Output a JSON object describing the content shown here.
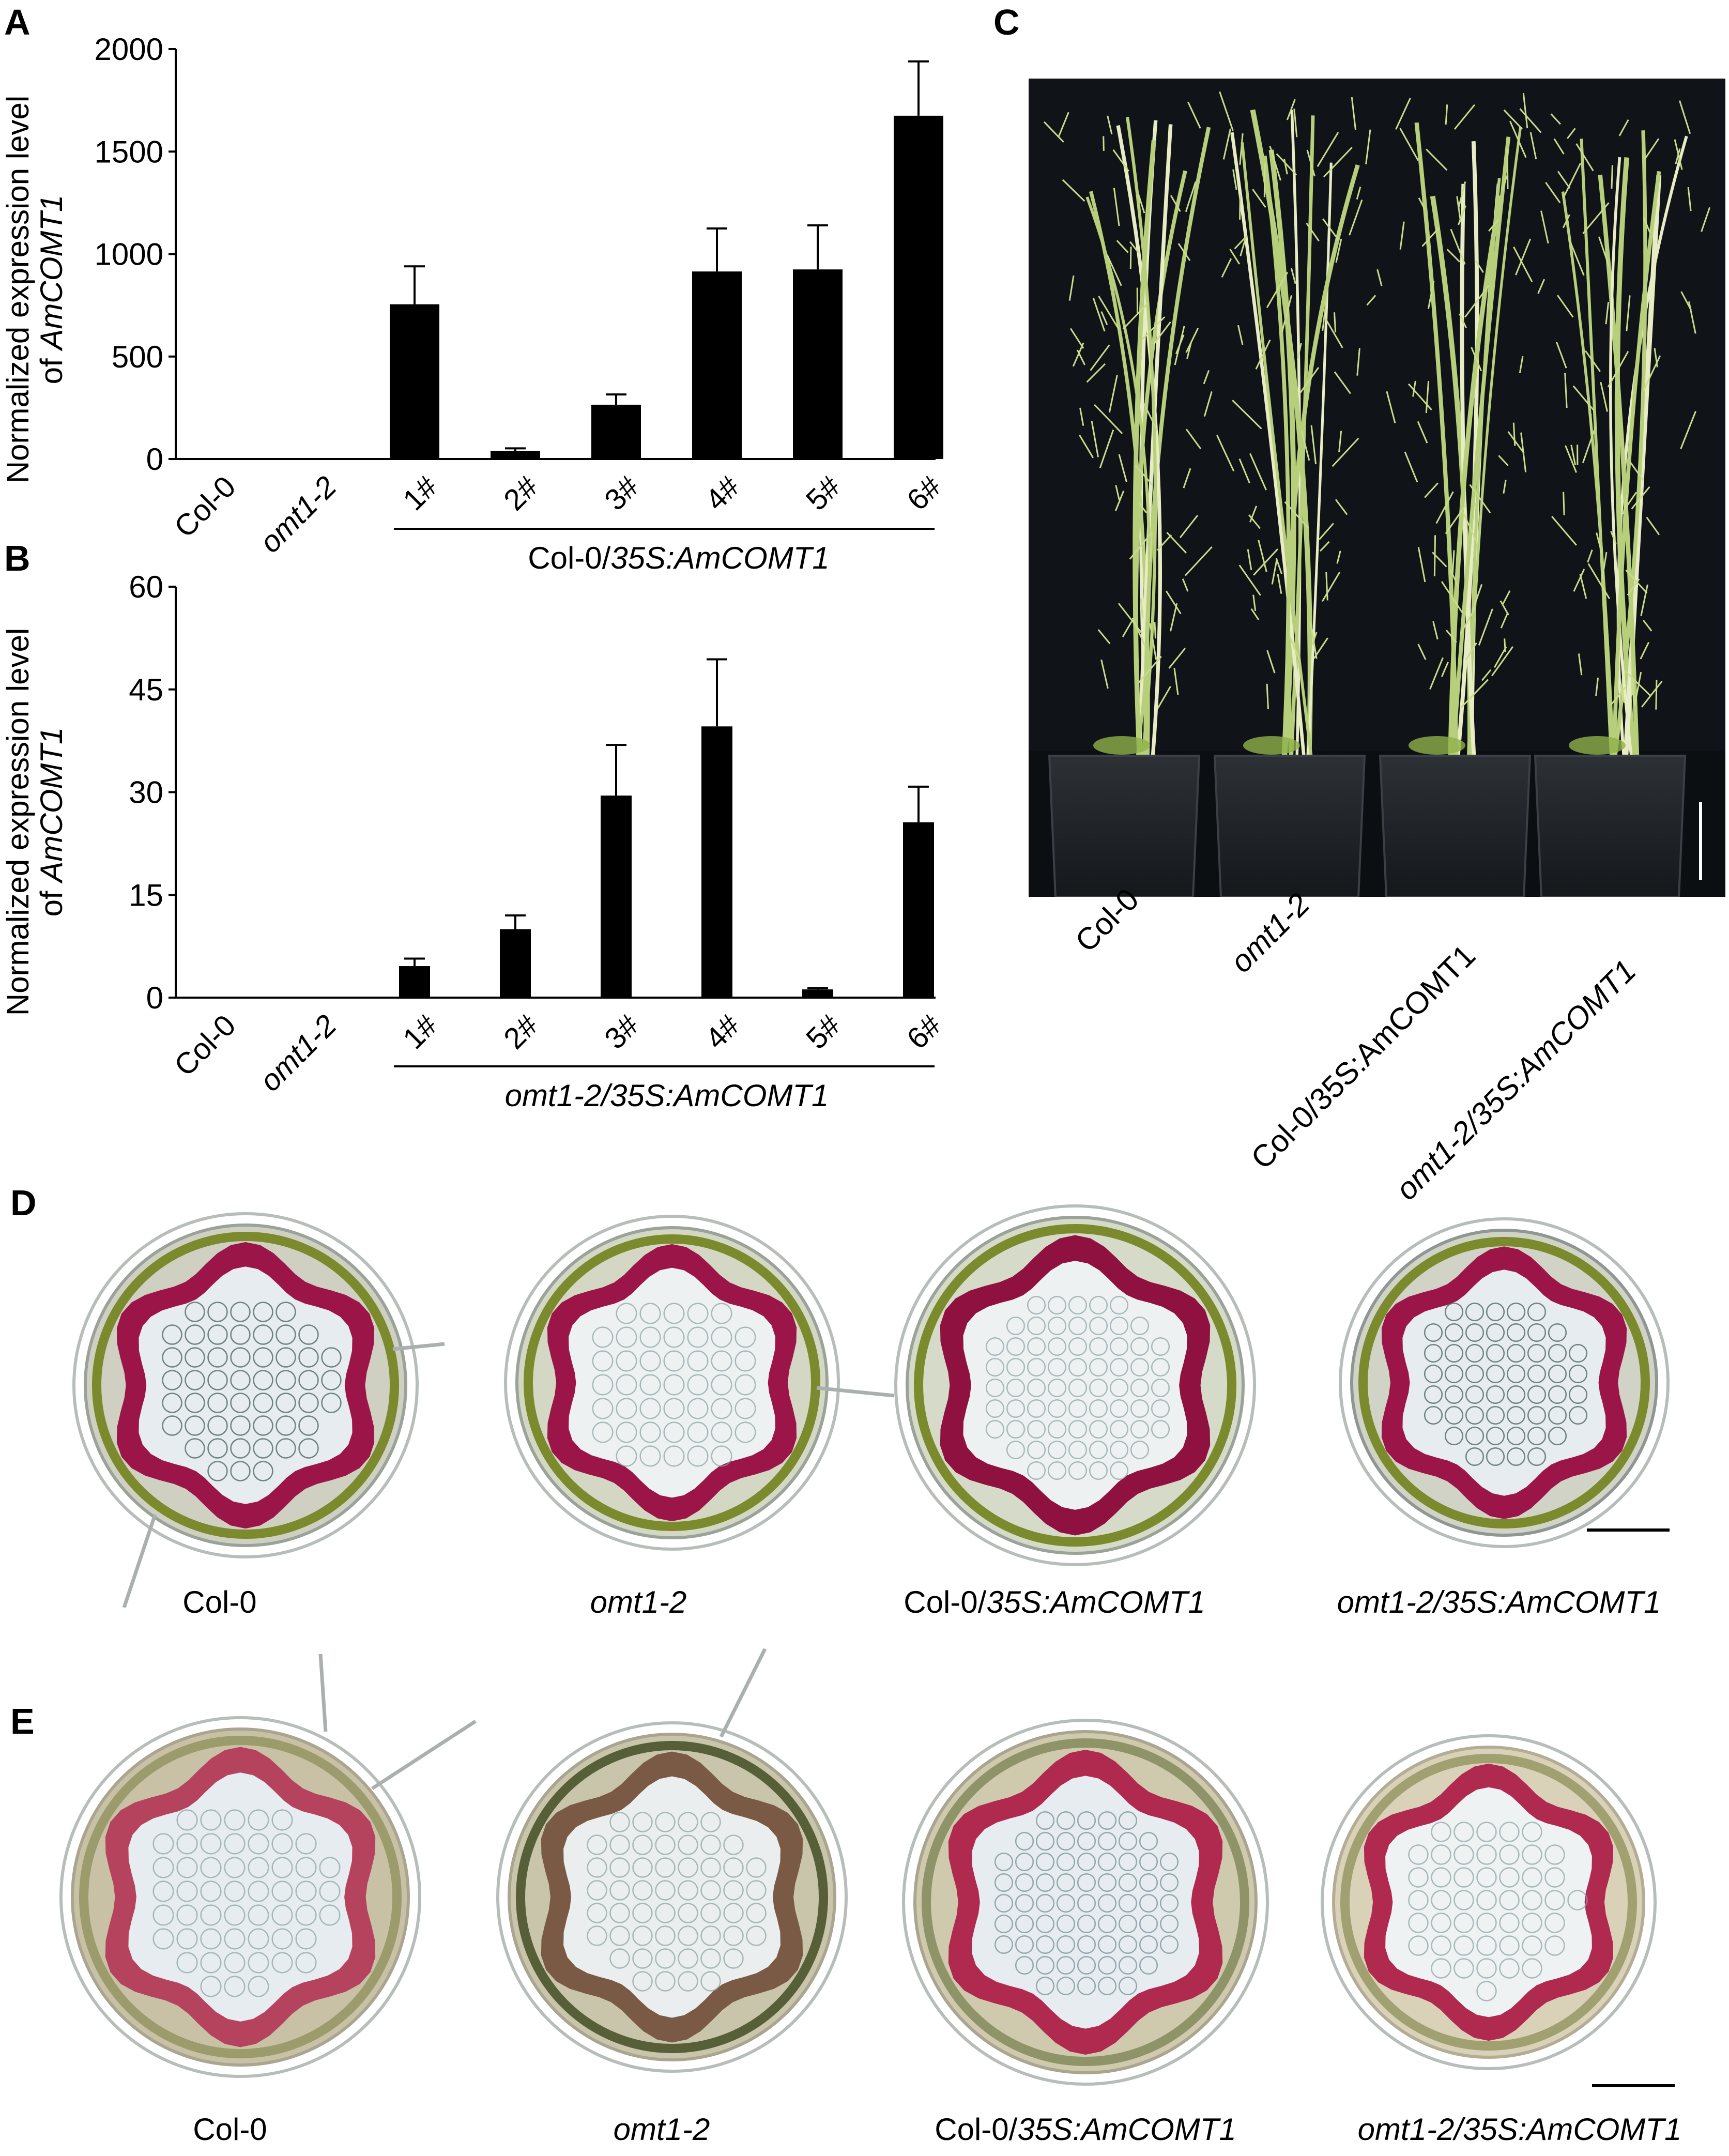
{
  "panels": {
    "a": "A",
    "b": "B",
    "c": "C",
    "d": "D",
    "e": "E"
  },
  "chart_data": [
    {
      "type": "bar",
      "panel": "A",
      "ylabel_line1": "Normalized expression level",
      "ylabel_line2_prefix": "of ",
      "ylabel_line2_gene": "AmCOMT1",
      "ylim": [
        0,
        2000
      ],
      "yticks": [
        "0",
        "500",
        "1000",
        "1500",
        "2000"
      ],
      "categories": [
        "Col-0",
        "omt1-2",
        "1#",
        "2#",
        "3#",
        "4#",
        "5#",
        "6#"
      ],
      "values": [
        0,
        0,
        755,
        40,
        265,
        915,
        925,
        1675
      ],
      "errors": [
        0,
        0,
        185,
        12,
        50,
        210,
        215,
        265
      ],
      "group_label_plain": "Col-0/",
      "group_label_italic": "35S:AmCOMT1",
      "bar_color": "#000000"
    },
    {
      "type": "bar",
      "panel": "B",
      "ylabel_line1": "Normalized expression level",
      "ylabel_line2_prefix": "of ",
      "ylabel_line2_gene": "AmCOMT1",
      "ylim": [
        0,
        60
      ],
      "yticks": [
        "0",
        "15",
        "30",
        "45",
        "60"
      ],
      "categories": [
        "Col-0",
        "omt1-2",
        "1#",
        "2#",
        "3#",
        "4#",
        "5#",
        "6#"
      ],
      "values": [
        0,
        0,
        4.6,
        10.0,
        29.5,
        39.6,
        1.2,
        25.6
      ],
      "errors": [
        0,
        0,
        1.1,
        2.0,
        7.4,
        9.8,
        0.2,
        5.2
      ],
      "group_label_plain": "",
      "group_label_italic": "omt1-2/35S:AmCOMT1",
      "bar_color": "#000000"
    }
  ],
  "panel_c": {
    "labels": [
      {
        "plain": "Col-0",
        "italic": ""
      },
      {
        "plain": "",
        "italic": "omt1-2"
      },
      {
        "plain": "Col-0/35S:AmCOMT1",
        "italic": ""
      },
      {
        "plain": "",
        "italic": "omt1-2/35S:AmCOMT1"
      }
    ]
  },
  "panel_d": {
    "captions": [
      {
        "plain": "Col-0",
        "italic": ""
      },
      {
        "plain": "",
        "italic": "omt1-2"
      },
      {
        "plain": "Col-0/",
        "italic": "35S:AmCOMT1"
      },
      {
        "plain": "",
        "italic": "omt1-2/35S:AmCOMT1"
      }
    ]
  },
  "panel_e": {
    "captions": [
      {
        "plain": "Col-0",
        "italic": ""
      },
      {
        "plain": "",
        "italic": "omt1-2"
      },
      {
        "plain": "Col-0/",
        "italic": "35S:AmCOMT1"
      },
      {
        "plain": "",
        "italic": "omt1-2/35S:AmCOMT1"
      }
    ]
  },
  "colors": {
    "lignin_stain": "#9c1548",
    "epidermis_green": "#7b8a2c",
    "pith": "#e6ecef",
    "photo_bg": "#101418",
    "plant_green": "#b7cf7a",
    "pot": "#1e2226"
  }
}
